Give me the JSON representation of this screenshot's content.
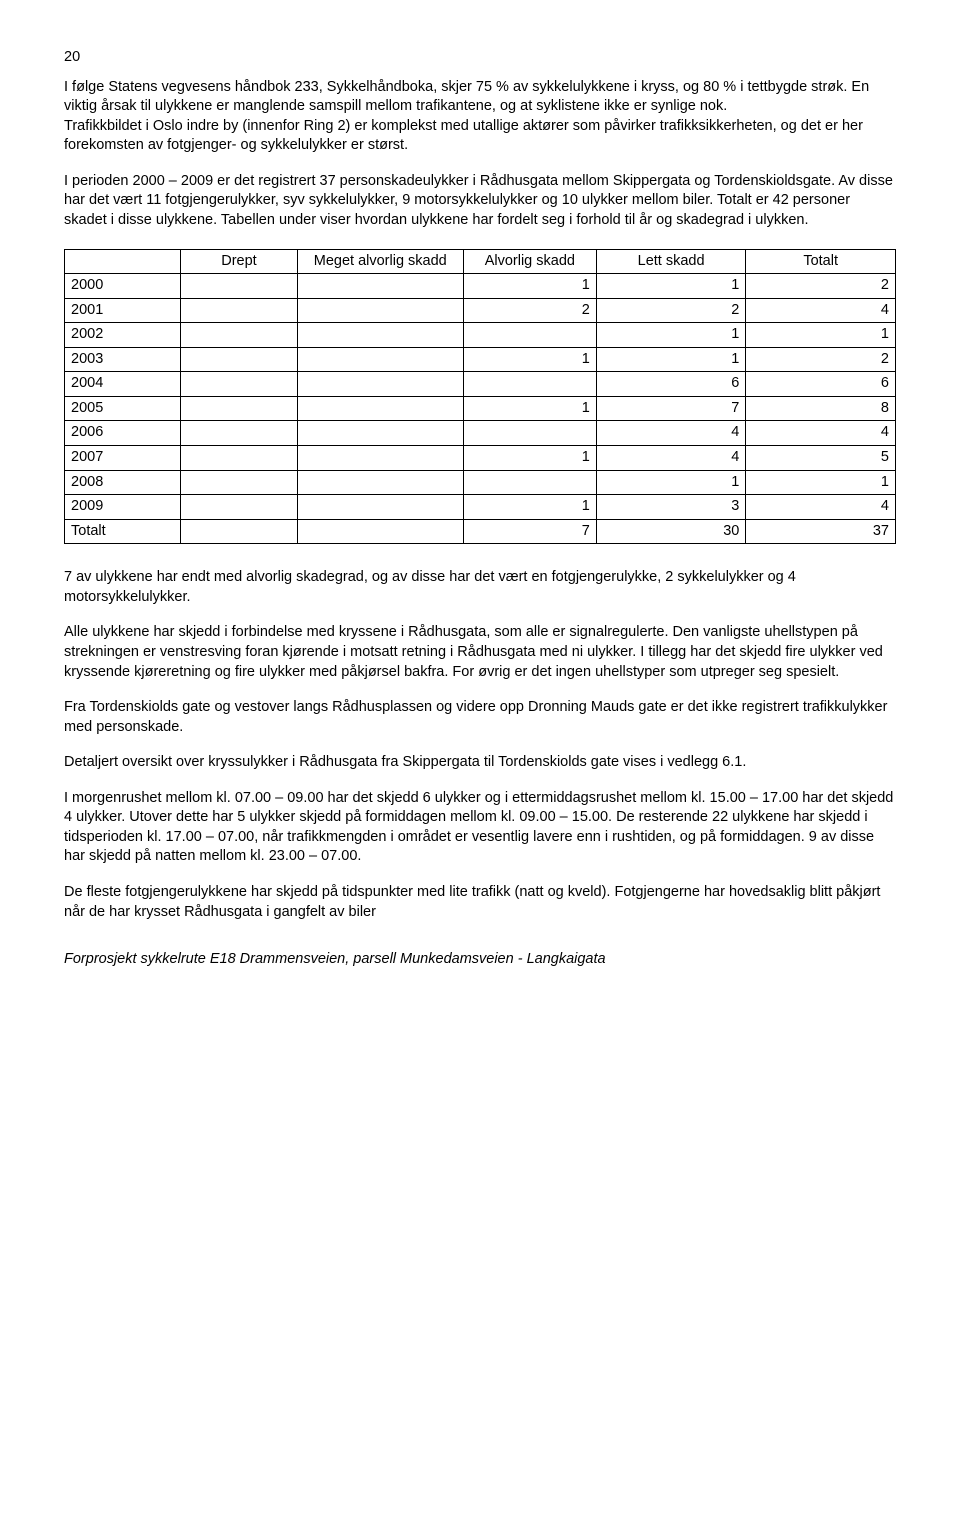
{
  "page_number": "20",
  "para1": "I følge Statens vegvesens håndbok 233, Sykkelhåndboka, skjer 75 % av sykkelulykkene i kryss, og 80 % i tettbygde strøk. En viktig årsak til ulykkene er manglende samspill mellom trafikantene, og at syklistene ikke er synlige nok.",
  "para1b": "Trafikkbildet i Oslo indre by (innenfor Ring 2) er komplekst med utallige aktører som påvirker trafikksikkerheten, og det er her forekomsten av fotgjenger- og sykkelulykker er størst.",
  "para2": "I perioden 2000 – 2009 er det registrert 37 personskadeulykker i Rådhusgata mellom Skippergata og Tordenskioldsgate. Av disse har det vært 11 fotgjengerulykker, syv sykkelulykker, 9 motorsykkelulykker og 10 ulykker mellom biler. Totalt er 42 personer skadet i disse ulykkene. Tabellen under viser hvordan ulykkene har fordelt seg i forhold til år og skadegrad i ulykken.",
  "table": {
    "columns": [
      "",
      "Drept",
      "Meget alvorlig skadd",
      "Alvorlig skadd",
      "Lett skadd",
      "Totalt"
    ],
    "rows": [
      [
        "2000",
        "",
        "",
        "1",
        "1",
        "2"
      ],
      [
        "2001",
        "",
        "",
        "2",
        "2",
        "4"
      ],
      [
        "2002",
        "",
        "",
        "",
        "1",
        "1"
      ],
      [
        "2003",
        "",
        "",
        "1",
        "1",
        "2"
      ],
      [
        "2004",
        "",
        "",
        "",
        "6",
        "6"
      ],
      [
        "2005",
        "",
        "",
        "1",
        "7",
        "8"
      ],
      [
        "2006",
        "",
        "",
        "",
        "4",
        "4"
      ],
      [
        "2007",
        "",
        "",
        "1",
        "4",
        "5"
      ],
      [
        "2008",
        "",
        "",
        "",
        "1",
        "1"
      ],
      [
        "2009",
        "",
        "",
        "1",
        "3",
        "4"
      ],
      [
        "Totalt",
        "",
        "",
        "7",
        "30",
        "37"
      ]
    ],
    "col_widths": [
      "14%",
      "14%",
      "20%",
      "16%",
      "18%",
      "18%"
    ]
  },
  "para3": "7 av ulykkene har endt med alvorlig skadegrad, og av disse har det vært en fotgjengerulykke, 2 sykkelulykker og 4 motorsykkelulykker.",
  "para4": "Alle ulykkene har skjedd i forbindelse med kryssene i Rådhusgata, som alle er signalregulerte. Den vanligste uhellstypen på strekningen er venstresving foran kjørende i motsatt retning i Rådhusgata med ni ulykker. I tillegg har det skjedd fire ulykker ved kryssende kjøreretning og fire ulykker med påkjørsel bakfra. For øvrig er det ingen uhellstyper som utpreger seg spesielt.",
  "para5": "Fra Tordenskiolds gate og vestover langs Rådhusplassen og videre opp Dronning Mauds gate er det ikke registrert trafikkulykker med personskade.",
  "para6": "Detaljert oversikt over kryssulykker i Rådhusgata fra Skippergata til Tordenskiolds gate vises i vedlegg 6.1.",
  "para7": "I morgenrushet mellom kl. 07.00 – 09.00 har det skjedd 6 ulykker og i ettermiddagsrushet mellom kl. 15.00 – 17.00 har det skjedd 4 ulykker. Utover dette har 5 ulykker skjedd på formiddagen mellom kl. 09.00 – 15.00. De resterende 22 ulykkene har skjedd i tidsperioden kl. 17.00 – 07.00, når trafikkmengden i området er vesentlig lavere enn i rushtiden, og på formiddagen. 9 av disse har skjedd på natten mellom kl. 23.00 – 07.00.",
  "para8": "De fleste fotgjengerulykkene har skjedd på tidspunkter med lite trafikk (natt og kveld). Fotgjengerne har hovedsaklig blitt påkjørt når de har krysset Rådhusgata i gangfelt av biler",
  "footer": "Forprosjekt sykkelrute E18 Drammensveien, parsell Munkedamsveien - Langkaigata"
}
